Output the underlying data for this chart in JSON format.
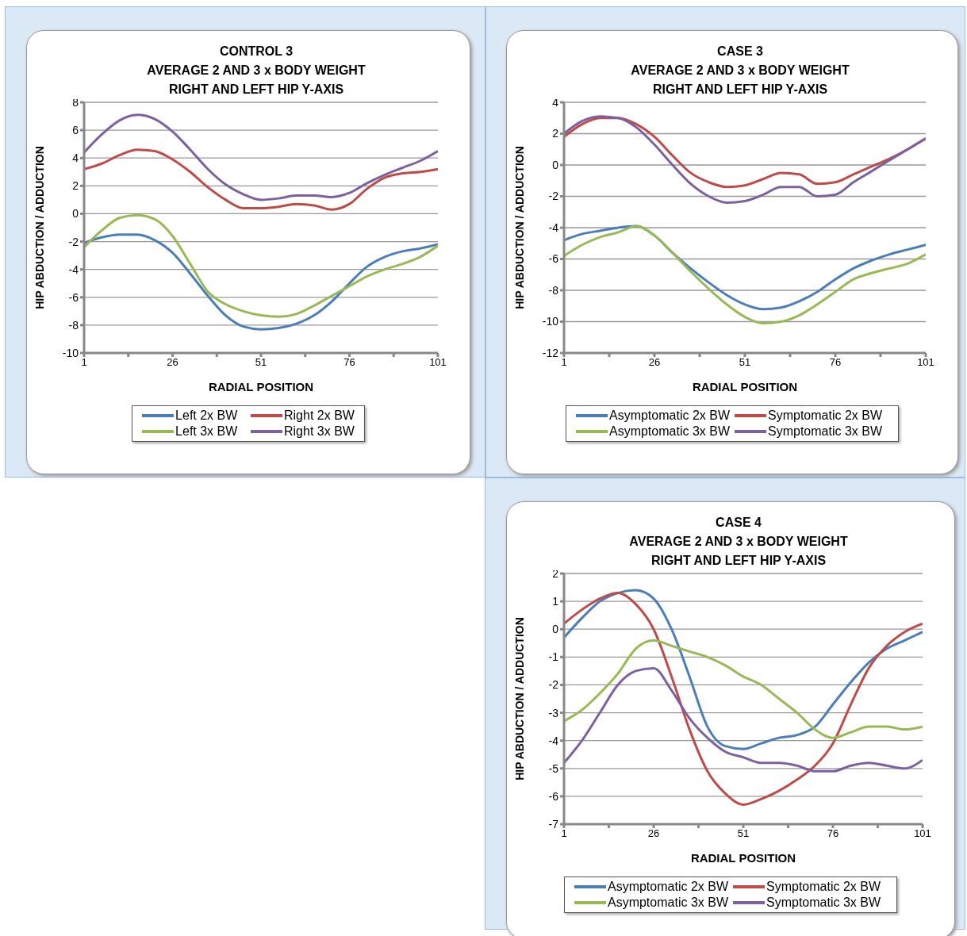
{
  "chart_data": [
    {
      "type": "line",
      "title": "CONTROL 3\nAVERAGE 2 AND 3 x BODY WEIGHT\nRIGHT AND LEFT HIP Y-AXIS",
      "xlabel": "RADIAL POSITION",
      "ylabel": "HIP  ABDUCTION  /  ADDUCTION",
      "x": [
        1,
        6,
        11,
        16,
        21,
        26,
        31,
        36,
        41,
        46,
        51,
        56,
        61,
        66,
        71,
        76,
        81,
        86,
        91,
        96,
        101
      ],
      "xlim": [
        1,
        101
      ],
      "xticks": [
        1,
        {
          "value": 13.5,
          "label": null
        },
        26,
        {
          "value": 38.5,
          "label": null
        },
        51,
        {
          "value": 63.5,
          "label": null
        },
        76,
        {
          "value": 88.5,
          "label": null
        },
        101
      ],
      "ylim": [
        -10,
        8
      ],
      "yticks": [
        -10,
        -8,
        -6,
        -4,
        -2,
        0,
        2,
        4,
        6,
        8
      ],
      "grid": "y",
      "legend": "bottom",
      "marker": "none",
      "line_style": "solid",
      "series": [
        {
          "name": "Left 2x BW",
          "color": "#4a7ebb",
          "values": [
            -2.1,
            -1.7,
            -1.5,
            -1.5,
            -1.9,
            -2.8,
            -4.3,
            -5.9,
            -7.3,
            -8.1,
            -8.3,
            -8.2,
            -7.9,
            -7.3,
            -6.3,
            -5.0,
            -3.8,
            -3.1,
            -2.7,
            -2.5,
            -2.2
          ]
        },
        {
          "name": "Right 2x BW",
          "color": "#be4b48",
          "values": [
            3.2,
            3.6,
            4.2,
            4.6,
            4.5,
            3.9,
            3.0,
            1.9,
            1.0,
            0.4,
            0.4,
            0.5,
            0.7,
            0.6,
            0.3,
            0.7,
            1.8,
            2.6,
            2.9,
            3.0,
            3.2
          ]
        },
        {
          "name": "Left 3x BW",
          "color": "#98b954",
          "values": [
            -2.4,
            -1.2,
            -0.3,
            -0.1,
            -0.4,
            -1.6,
            -3.6,
            -5.6,
            -6.5,
            -7.0,
            -7.3,
            -7.4,
            -7.2,
            -6.6,
            -5.9,
            -5.2,
            -4.5,
            -4.0,
            -3.6,
            -3.1,
            -2.3
          ]
        },
        {
          "name": "Right 3x BW",
          "color": "#7d60a0",
          "values": [
            4.4,
            5.7,
            6.7,
            7.1,
            6.8,
            5.9,
            4.6,
            3.2,
            2.1,
            1.4,
            1.0,
            1.1,
            1.3,
            1.3,
            1.2,
            1.5,
            2.2,
            2.8,
            3.3,
            3.8,
            4.5
          ]
        }
      ]
    },
    {
      "type": "line",
      "title": "CASE 3\nAVERAGE 2 AND 3 x BODY WEIGHT\nRIGHT AND LEFT HIP Y-AXIS",
      "xlabel": "RADIAL POSITION",
      "ylabel": "HIP  ABDUCTION  /  ADDUCTION",
      "x": [
        1,
        6,
        11,
        16,
        21,
        26,
        31,
        36,
        41,
        46,
        51,
        56,
        61,
        66,
        71,
        76,
        81,
        86,
        91,
        96,
        101
      ],
      "xlim": [
        1,
        101
      ],
      "xticks": [
        1,
        {
          "value": 13.5,
          "label": null
        },
        26,
        {
          "value": 38.5,
          "label": null
        },
        51,
        {
          "value": 63.5,
          "label": null
        },
        76,
        {
          "value": 88.5,
          "label": null
        },
        101
      ],
      "ylim": [
        -12,
        4
      ],
      "yticks": [
        -12,
        -10,
        -8,
        -6,
        -4,
        -2,
        0,
        2,
        4
      ],
      "grid": "y",
      "legend": "bottom",
      "marker": "none",
      "line_style": "solid",
      "series": [
        {
          "name": "Asymptomatic 2x BW",
          "color": "#4a7ebb",
          "values": [
            -4.8,
            -4.4,
            -4.2,
            -4.0,
            -3.9,
            -4.5,
            -5.6,
            -6.6,
            -7.5,
            -8.3,
            -8.9,
            -9.2,
            -9.1,
            -8.7,
            -8.1,
            -7.3,
            -6.6,
            -6.1,
            -5.7,
            -5.4,
            -5.1
          ]
        },
        {
          "name": "Symptomatic 2x BW",
          "color": "#be4b48",
          "values": [
            1.8,
            2.6,
            3.0,
            3.0,
            2.6,
            1.8,
            0.6,
            -0.5,
            -1.1,
            -1.4,
            -1.3,
            -0.9,
            -0.5,
            -0.6,
            -1.2,
            -1.1,
            -0.6,
            -0.1,
            0.4,
            1.0,
            1.7
          ]
        },
        {
          "name": "Asymptomatic 3x BW",
          "color": "#98b954",
          "values": [
            -5.8,
            -5.1,
            -4.6,
            -4.3,
            -3.9,
            -4.5,
            -5.6,
            -6.8,
            -7.9,
            -8.9,
            -9.7,
            -10.1,
            -10.0,
            -9.6,
            -8.9,
            -8.1,
            -7.3,
            -6.9,
            -6.6,
            -6.3,
            -5.7
          ]
        },
        {
          "name": "Symptomatic 3x BW",
          "color": "#7d60a0",
          "values": [
            2.0,
            2.8,
            3.1,
            3.0,
            2.4,
            1.3,
            0.0,
            -1.2,
            -2.0,
            -2.4,
            -2.3,
            -1.9,
            -1.4,
            -1.4,
            -2.0,
            -1.9,
            -1.1,
            -0.4,
            0.3,
            1.0,
            1.7
          ]
        }
      ]
    },
    {
      "type": "line",
      "title": "CASE 4\nAVERAGE 2 AND 3 x BODY WEIGHT\nRIGHT AND LEFT HIP Y-AXIS",
      "xlabel": "RADIAL POSITION",
      "ylabel": "HIP  ABDUCTION  /  ADDUCTION",
      "x": [
        1,
        6,
        11,
        16,
        21,
        26,
        31,
        36,
        41,
        46,
        51,
        56,
        61,
        66,
        71,
        76,
        81,
        86,
        91,
        96,
        101
      ],
      "xlim": [
        1,
        101
      ],
      "xticks": [
        1,
        {
          "value": 13.5,
          "label": null
        },
        26,
        {
          "value": 38.5,
          "label": null
        },
        51,
        {
          "value": 63.5,
          "label": null
        },
        76,
        {
          "value": 88.5,
          "label": null
        },
        101
      ],
      "ylim": [
        -7,
        2
      ],
      "yticks": [
        -7,
        -6,
        -5,
        -4,
        -3,
        -2,
        -1,
        0,
        1,
        2
      ],
      "grid": "y",
      "legend": "bottom",
      "marker": "none",
      "line_style": "solid",
      "series": [
        {
          "name": "Asymptomatic 2x BW",
          "color": "#4a7ebb",
          "values": [
            -0.3,
            0.4,
            1.0,
            1.3,
            1.4,
            1.1,
            0.0,
            -1.7,
            -3.5,
            -4.2,
            -4.3,
            -4.1,
            -3.9,
            -3.8,
            -3.5,
            -2.7,
            -1.9,
            -1.2,
            -0.7,
            -0.4,
            -0.1
          ]
        },
        {
          "name": "Symptomatic 2x BW",
          "color": "#be4b48",
          "values": [
            0.2,
            0.7,
            1.1,
            1.3,
            0.9,
            0.0,
            -1.7,
            -3.6,
            -5.1,
            -5.9,
            -6.3,
            -6.1,
            -5.8,
            -5.4,
            -4.9,
            -4.1,
            -2.7,
            -1.4,
            -0.6,
            -0.1,
            0.2
          ]
        },
        {
          "name": "Asymptomatic 3x BW",
          "color": "#98b954",
          "values": [
            -3.3,
            -2.9,
            -2.3,
            -1.6,
            -0.7,
            -0.4,
            -0.6,
            -0.8,
            -1.0,
            -1.3,
            -1.7,
            -2.0,
            -2.5,
            -3.0,
            -3.6,
            -3.9,
            -3.7,
            -3.5,
            -3.5,
            -3.6,
            -3.5
          ]
        },
        {
          "name": "Symptomatic 3x BW",
          "color": "#7d60a0",
          "values": [
            -4.8,
            -4.0,
            -3.0,
            -2.0,
            -1.5,
            -1.4,
            -2.2,
            -3.2,
            -3.9,
            -4.4,
            -4.6,
            -4.8,
            -4.8,
            -4.9,
            -5.1,
            -5.1,
            -4.9,
            -4.8,
            -4.9,
            -5.0,
            -4.7
          ]
        }
      ]
    }
  ]
}
